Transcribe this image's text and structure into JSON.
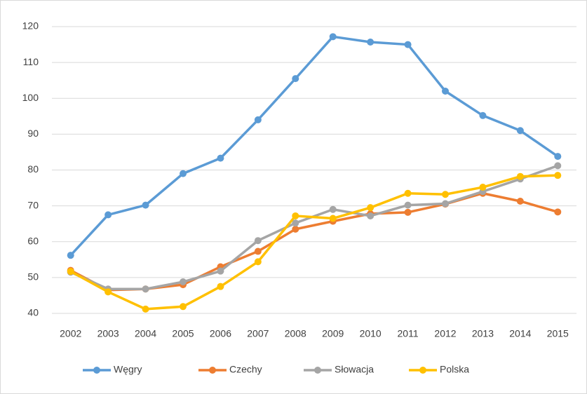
{
  "chart_data": {
    "type": "line",
    "categories": [
      "2002",
      "2003",
      "2004",
      "2005",
      "2006",
      "2007",
      "2008",
      "2009",
      "2010",
      "2011",
      "2012",
      "2013",
      "2014",
      "2015"
    ],
    "series": [
      {
        "name": "Węgry",
        "color": "#5b9bd5",
        "values": [
          56.2,
          67.5,
          70.2,
          79,
          83.3,
          94,
          105.5,
          117.2,
          115.7,
          115,
          102,
          95.2,
          91,
          83.8
        ]
      },
      {
        "name": "Czechy",
        "color": "#ed7d31",
        "values": [
          52,
          46.5,
          46.8,
          48,
          53,
          57.3,
          63.5,
          65.7,
          67.8,
          68.2,
          70.5,
          73.5,
          71.3,
          68.3
        ]
      },
      {
        "name": "Słowacja",
        "color": "#a5a5a5",
        "values": [
          51.5,
          46.8,
          46.8,
          48.8,
          51.8,
          60.3,
          65.2,
          69,
          67.2,
          70.2,
          70.6,
          74,
          77.5,
          81.2
        ]
      },
      {
        "name": "Polska",
        "color": "#ffc000",
        "values": [
          51.7,
          46,
          41.2,
          41.9,
          47.5,
          54.4,
          67.2,
          66.5,
          69.5,
          73.5,
          73.2,
          75.2,
          78.2,
          78.5
        ]
      }
    ],
    "ylim": [
      40,
      120
    ],
    "yticks": [
      40,
      50,
      60,
      70,
      80,
      90,
      100,
      110,
      120
    ],
    "grid": true,
    "legend": "bottom"
  }
}
